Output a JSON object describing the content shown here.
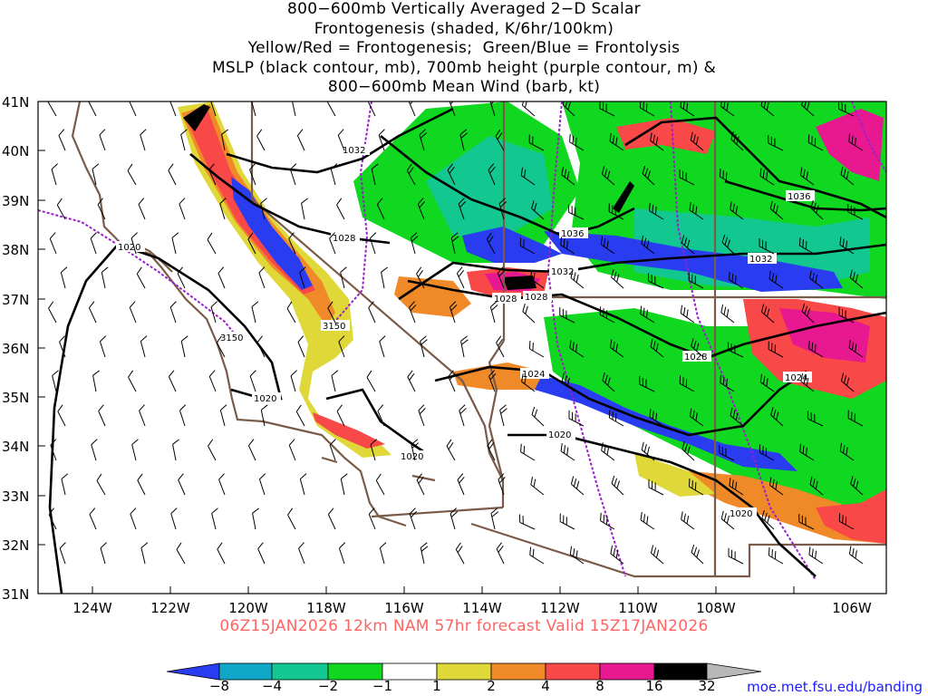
{
  "title_lines": [
    "800−600mb Vertically Averaged 2−D Scalar",
    "Frontogenesis (shaded, K/6hr/100km)",
    "Yellow/Red = Frontogenesis;  Green/Blue = Frontolysis",
    "MSLP (black contour, mb), 700mb height (purple contour, m) &",
    "800−600mb Mean Wind (barb, kt)"
  ],
  "forecast_line": "06Z15JAN2026 12km NAM 57hr forecast Valid 15Z17JAN2026",
  "credit": "moe.met.fsu.edu/banding",
  "lat_labels": [
    "41N",
    "40N",
    "39N",
    "38N",
    "37N",
    "36N",
    "35N",
    "34N",
    "33N",
    "32N",
    "31N"
  ],
  "lon_labels": [
    "124W",
    "122W",
    "120W",
    "118W",
    "116W",
    "114W",
    "112W",
    "110W",
    "108W",
    "106W"
  ],
  "mslp_labels": [
    "1032",
    "1028",
    "1020",
    "1020",
    "1020",
    "1028",
    "1036",
    "1032",
    "1028",
    "1036",
    "1032",
    "1028",
    "1024",
    "1024",
    "1020",
    "1020"
  ],
  "height_labels": [
    "3150",
    "3150"
  ],
  "colorbar": {
    "labels": [
      "−8",
      "−4",
      "−2",
      "−1",
      "1",
      "2",
      "4",
      "8",
      "16",
      "32"
    ],
    "colors": [
      "#2a3cf0",
      "#10a8c8",
      "#12c890",
      "#10d820",
      "#ffffff",
      "#e0d838",
      "#f08a28",
      "#f84848",
      "#e81890",
      "#000000",
      "#b8b8b8"
    ]
  },
  "colors": {
    "mslp": "#000000",
    "height": "#9a20c8",
    "border": "#7a5a48",
    "forecast": "#ff6464",
    "credit": "#1a1aff"
  }
}
